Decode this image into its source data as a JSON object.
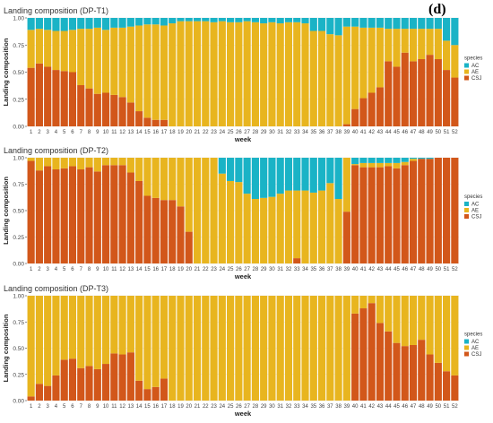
{
  "figure": {
    "panel_label": "(d)"
  },
  "chart_data": [
    {
      "type": "bar",
      "stacked": true,
      "title": "Landing composition (DP-T1)",
      "xlabel": "week",
      "ylabel": "Landing composition",
      "ylim": [
        0,
        1
      ],
      "yticks": [
        "0.00",
        "0.25",
        "0.50",
        "0.75",
        "1.00"
      ],
      "legend": {
        "title": "species",
        "entries": [
          "AC",
          "AE",
          "CSJ"
        ],
        "placement": "right"
      },
      "colors": {
        "AC": "#1ab3c6",
        "AE": "#e8b51f",
        "CSJ": "#d2571a"
      },
      "categories": [
        "1",
        "2",
        "3",
        "4",
        "5",
        "6",
        "7",
        "8",
        "9",
        "10",
        "11",
        "12",
        "13",
        "14",
        "15",
        "16",
        "17",
        "18",
        "19",
        "20",
        "21",
        "22",
        "23",
        "24",
        "25",
        "26",
        "27",
        "28",
        "29",
        "30",
        "31",
        "32",
        "33",
        "34",
        "35",
        "36",
        "37",
        "38",
        "39",
        "40",
        "41",
        "42",
        "43",
        "44",
        "45",
        "46",
        "47",
        "48",
        "49",
        "50",
        "51",
        "52"
      ],
      "series": [
        {
          "name": "CSJ",
          "values": [
            0.54,
            0.58,
            0.55,
            0.52,
            0.51,
            0.5,
            0.38,
            0.35,
            0.3,
            0.31,
            0.29,
            0.27,
            0.22,
            0.14,
            0.08,
            0.06,
            0.06,
            0.0,
            0.0,
            0.0,
            0.0,
            0.0,
            0.0,
            0.0,
            0.0,
            0.0,
            0.0,
            0.0,
            0.0,
            0.0,
            0.0,
            0.0,
            0.0,
            0.0,
            0.0,
            0.0,
            0.0,
            0.0,
            0.02,
            0.16,
            0.26,
            0.31,
            0.36,
            0.6,
            0.55,
            0.68,
            0.6,
            0.62,
            0.66,
            0.62,
            0.52,
            0.45
          ]
        },
        {
          "name": "AE",
          "values": [
            0.35,
            0.32,
            0.34,
            0.36,
            0.37,
            0.39,
            0.52,
            0.55,
            0.61,
            0.58,
            0.62,
            0.64,
            0.7,
            0.79,
            0.86,
            0.88,
            0.87,
            0.95,
            0.97,
            0.97,
            0.97,
            0.97,
            0.96,
            0.97,
            0.96,
            0.96,
            0.97,
            0.96,
            0.95,
            0.96,
            0.95,
            0.96,
            0.96,
            0.95,
            0.88,
            0.88,
            0.85,
            0.84,
            0.9,
            0.76,
            0.65,
            0.6,
            0.55,
            0.3,
            0.35,
            0.22,
            0.3,
            0.28,
            0.24,
            0.28,
            0.27,
            0.3
          ]
        },
        {
          "name": "AC",
          "values": [
            0.11,
            0.1,
            0.11,
            0.12,
            0.12,
            0.11,
            0.1,
            0.1,
            0.09,
            0.11,
            0.09,
            0.09,
            0.08,
            0.07,
            0.06,
            0.06,
            0.07,
            0.05,
            0.03,
            0.03,
            0.03,
            0.03,
            0.04,
            0.03,
            0.04,
            0.04,
            0.03,
            0.04,
            0.05,
            0.04,
            0.05,
            0.04,
            0.04,
            0.05,
            0.12,
            0.12,
            0.15,
            0.16,
            0.08,
            0.08,
            0.09,
            0.09,
            0.09,
            0.1,
            0.1,
            0.1,
            0.1,
            0.1,
            0.1,
            0.1,
            0.21,
            0.25
          ]
        }
      ]
    },
    {
      "type": "bar",
      "stacked": true,
      "title": "Landing composition (DP-T2)",
      "xlabel": "week",
      "ylabel": "Landing composition",
      "ylim": [
        0,
        1
      ],
      "yticks": [
        "0.00",
        "0.25",
        "0.50",
        "0.75",
        "1.00"
      ],
      "legend": {
        "title": "species",
        "entries": [
          "AC",
          "AE",
          "CSJ"
        ],
        "placement": "right"
      },
      "colors": {
        "AC": "#1ab3c6",
        "AE": "#e8b51f",
        "CSJ": "#d2571a"
      },
      "categories": [
        "1",
        "2",
        "3",
        "4",
        "5",
        "6",
        "7",
        "8",
        "9",
        "10",
        "11",
        "12",
        "13",
        "14",
        "15",
        "16",
        "17",
        "18",
        "19",
        "20",
        "21",
        "22",
        "23",
        "24",
        "25",
        "26",
        "27",
        "28",
        "29",
        "30",
        "31",
        "32",
        "33",
        "34",
        "35",
        "36",
        "37",
        "38",
        "39",
        "40",
        "41",
        "42",
        "43",
        "44",
        "45",
        "46",
        "47",
        "48",
        "49",
        "50",
        "51",
        "52"
      ],
      "series": [
        {
          "name": "CSJ",
          "values": [
            0.97,
            0.88,
            0.92,
            0.89,
            0.9,
            0.92,
            0.89,
            0.91,
            0.87,
            0.93,
            0.93,
            0.93,
            0.86,
            0.78,
            0.64,
            0.62,
            0.6,
            0.6,
            0.54,
            0.3,
            0.0,
            0.0,
            0.0,
            0.0,
            0.0,
            0.0,
            0.0,
            0.0,
            0.0,
            0.0,
            0.0,
            0.0,
            0.05,
            0.0,
            0.0,
            0.0,
            0.0,
            0.0,
            0.49,
            0.93,
            0.91,
            0.91,
            0.91,
            0.92,
            0.9,
            0.93,
            0.97,
            0.99,
            0.99,
            1.0,
            1.0,
            1.0
          ]
        },
        {
          "name": "AE",
          "values": [
            0.03,
            0.12,
            0.08,
            0.11,
            0.1,
            0.08,
            0.11,
            0.09,
            0.13,
            0.07,
            0.07,
            0.07,
            0.14,
            0.22,
            0.36,
            0.38,
            0.4,
            0.4,
            0.46,
            0.7,
            1.0,
            1.0,
            1.0,
            0.85,
            0.78,
            0.77,
            0.66,
            0.61,
            0.62,
            0.63,
            0.66,
            0.69,
            0.64,
            0.69,
            0.67,
            0.69,
            0.76,
            0.61,
            0.51,
            0.01,
            0.04,
            0.04,
            0.04,
            0.03,
            0.05,
            0.03,
            0.02,
            0.0,
            0.0,
            0.0,
            0.0,
            0.0
          ]
        },
        {
          "name": "AC",
          "values": [
            0.0,
            0.0,
            0.0,
            0.0,
            0.0,
            0.0,
            0.0,
            0.0,
            0.0,
            0.0,
            0.0,
            0.0,
            0.0,
            0.0,
            0.0,
            0.0,
            0.0,
            0.0,
            0.0,
            0.0,
            0.0,
            0.0,
            0.0,
            0.15,
            0.22,
            0.23,
            0.34,
            0.39,
            0.38,
            0.37,
            0.34,
            0.31,
            0.31,
            0.31,
            0.33,
            0.31,
            0.24,
            0.39,
            0.0,
            0.06,
            0.05,
            0.05,
            0.05,
            0.05,
            0.05,
            0.04,
            0.01,
            0.01,
            0.01,
            0.0,
            0.0,
            0.0
          ]
        }
      ]
    },
    {
      "type": "bar",
      "stacked": true,
      "title": "Landing composition (DP-T3)",
      "xlabel": "week",
      "ylabel": "Landing composition",
      "ylim": [
        0,
        1
      ],
      "yticks": [
        "0.00",
        "0.25",
        "0.50",
        "0.75",
        "1.00"
      ],
      "legend": {
        "title": "species",
        "entries": [
          "AC",
          "AE",
          "CSJ"
        ],
        "placement": "right"
      },
      "colors": {
        "AC": "#1ab3c6",
        "AE": "#e8b51f",
        "CSJ": "#d2571a"
      },
      "categories": [
        "1",
        "2",
        "3",
        "4",
        "5",
        "6",
        "7",
        "8",
        "9",
        "10",
        "11",
        "12",
        "13",
        "14",
        "15",
        "16",
        "17",
        "18",
        "19",
        "20",
        "21",
        "22",
        "23",
        "24",
        "25",
        "26",
        "27",
        "28",
        "29",
        "30",
        "31",
        "32",
        "33",
        "34",
        "35",
        "36",
        "37",
        "38",
        "39",
        "40",
        "41",
        "42",
        "43",
        "44",
        "45",
        "46",
        "47",
        "48",
        "49",
        "50",
        "51",
        "52"
      ],
      "series": [
        {
          "name": "CSJ",
          "values": [
            0.04,
            0.16,
            0.14,
            0.24,
            0.39,
            0.4,
            0.31,
            0.33,
            0.3,
            0.35,
            0.45,
            0.44,
            0.46,
            0.19,
            0.11,
            0.13,
            0.21,
            0.0,
            0.0,
            0.0,
            0.0,
            0.0,
            0.0,
            0.0,
            0.0,
            0.0,
            0.0,
            0.0,
            0.0,
            0.0,
            0.0,
            0.0,
            0.0,
            0.0,
            0.0,
            0.0,
            0.0,
            0.0,
            0.0,
            0.83,
            0.88,
            0.93,
            0.74,
            0.66,
            0.55,
            0.52,
            0.53,
            0.58,
            0.44,
            0.36,
            0.28,
            0.24
          ]
        },
        {
          "name": "AE",
          "values": [
            0.96,
            0.84,
            0.86,
            0.76,
            0.61,
            0.6,
            0.69,
            0.67,
            0.7,
            0.65,
            0.55,
            0.56,
            0.54,
            0.81,
            0.89,
            0.87,
            0.79,
            1.0,
            1.0,
            1.0,
            1.0,
            1.0,
            1.0,
            1.0,
            1.0,
            1.0,
            1.0,
            1.0,
            1.0,
            1.0,
            1.0,
            1.0,
            1.0,
            1.0,
            1.0,
            1.0,
            1.0,
            1.0,
            1.0,
            0.17,
            0.12,
            0.07,
            0.26,
            0.34,
            0.45,
            0.48,
            0.47,
            0.42,
            0.56,
            0.64,
            0.72,
            0.76
          ]
        },
        {
          "name": "AC",
          "values": [
            0.0,
            0.0,
            0.0,
            0.0,
            0.0,
            0.0,
            0.0,
            0.0,
            0.0,
            0.0,
            0.0,
            0.0,
            0.0,
            0.0,
            0.0,
            0.0,
            0.0,
            0.0,
            0.0,
            0.0,
            0.0,
            0.0,
            0.0,
            0.0,
            0.0,
            0.0,
            0.0,
            0.0,
            0.0,
            0.0,
            0.0,
            0.0,
            0.0,
            0.0,
            0.0,
            0.0,
            0.0,
            0.0,
            0.0,
            0.0,
            0.0,
            0.0,
            0.0,
            0.0,
            0.0,
            0.0,
            0.0,
            0.0,
            0.0,
            0.0,
            0.0,
            0.0
          ]
        }
      ]
    }
  ]
}
